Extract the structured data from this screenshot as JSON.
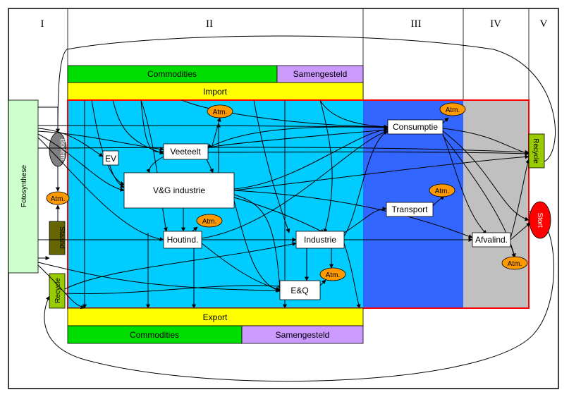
{
  "zones": [
    "I",
    "II",
    "III",
    "IV",
    "V"
  ],
  "top_bars": {
    "commodities": "Commodities",
    "composite": "Samengesteld",
    "import": "Import"
  },
  "bottom_bars": {
    "export": "Export",
    "commodities": "Commodities",
    "composite": "Samengesteld"
  },
  "left_labels": {
    "photosynthesis": "Fotosynthese",
    "soil": "Bodem",
    "standing": "Staand",
    "recycle": "Recycle"
  },
  "nodes": {
    "ev": "EV",
    "livestock": "Veeteelt",
    "food_industry": "V&G industrie",
    "wood_industry": "Houtind.",
    "industry": "Industrie",
    "eq": "E&Q",
    "consumption": "Consumptie",
    "transport": "Transport",
    "waste_industry": "Afvalind.",
    "recycle_right": "Recycle",
    "landfill": "Stort",
    "atmosphere": "Atm."
  },
  "colors": {
    "green": "#00dd00",
    "lavender": "#cc99ff",
    "yellow": "#ffff00",
    "cyan": "#00ccff",
    "blue": "#3366ff",
    "grey": "#c0c0c0",
    "red_border": "#ff0000",
    "atm": "#ff9900",
    "landfill": "#ff0000",
    "soil": "#808080",
    "standing": "#666600",
    "recycle": "#99cc00",
    "photosynthesis": "#ccffcc"
  }
}
